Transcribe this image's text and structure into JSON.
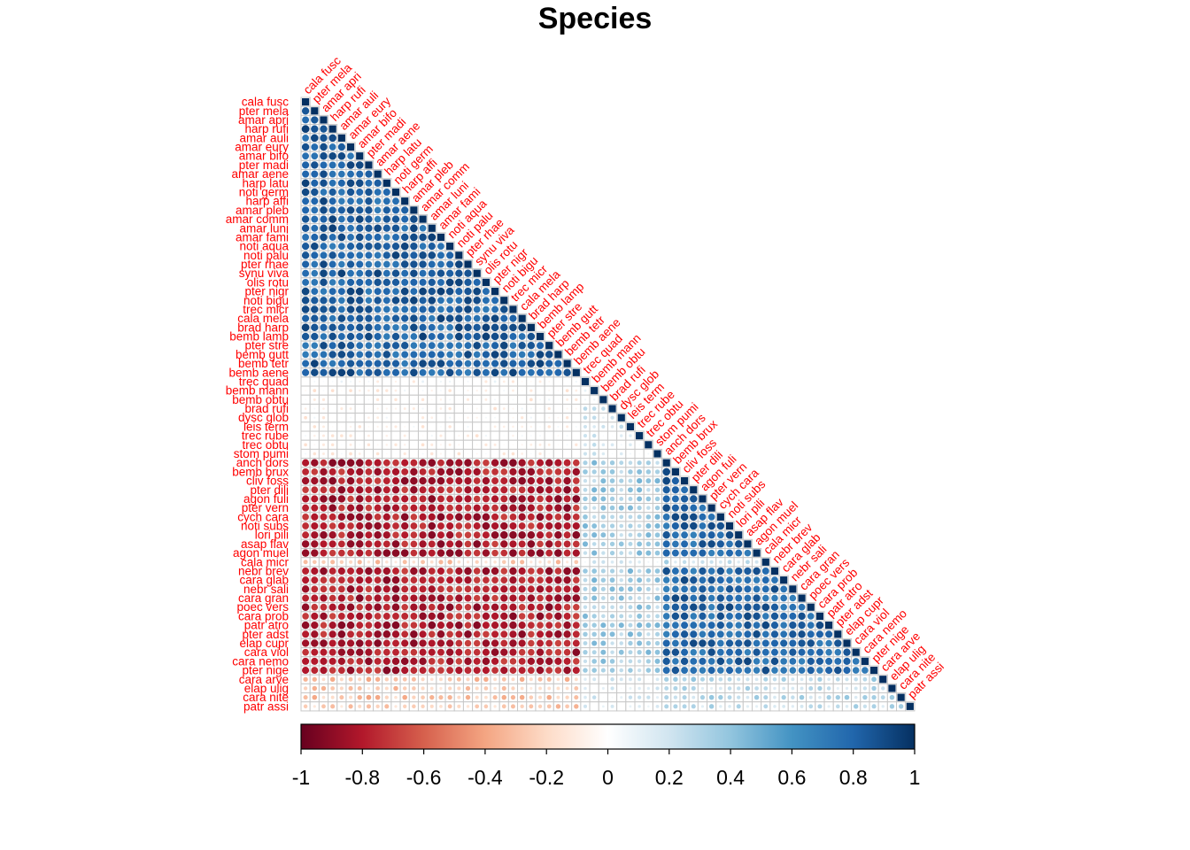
{
  "chart_data": {
    "type": "heatmap",
    "title": "Species",
    "layout": "lower-triangle",
    "method": "circle",
    "labels": [
      "cala fusc",
      "pter mela",
      "amar apri",
      "harp rufi",
      "amar auli",
      "amar eury",
      "amar bifo",
      "pter madi",
      "amar aene",
      "harp latu",
      "noti germ",
      "harp affi",
      "amar pleb",
      "amar comm",
      "amar luni",
      "amar fami",
      "noti aqua",
      "noti palu",
      "pter rhae",
      "synu viva",
      "olis rotu",
      "pter nigr",
      "noti bigu",
      "trec micr",
      "cala mela",
      "brad harp",
      "bemb lamp",
      "pter stre",
      "bemb gutt",
      "bemb tetr",
      "bemb aene",
      "trec quad",
      "bemb mann",
      "bemb obtu",
      "brad rufi",
      "dysc glob",
      "leis term",
      "trec rube",
      "trec obtu",
      "stom pumi",
      "anch dors",
      "bemb brux",
      "cliv foss",
      "pter dili",
      "agon fuli",
      "pter vern",
      "cych cara",
      "noti subs",
      "lori pili",
      "asap flav",
      "agon muel",
      "cala micr",
      "nebr brev",
      "cara glab",
      "nebr sali",
      "cara gran",
      "poec vers",
      "cara prob",
      "patr atro",
      "pter adst",
      "elap cupr",
      "cara viol",
      "cara nemo",
      "pter nige",
      "cara arve",
      "elap ulig",
      "cara nite",
      "patr assi"
    ],
    "group_index": [
      0,
      0,
      0,
      0,
      0,
      0,
      0,
      0,
      0,
      0,
      0,
      0,
      0,
      0,
      0,
      0,
      0,
      0,
      0,
      0,
      0,
      0,
      0,
      0,
      0,
      0,
      0,
      0,
      0,
      0,
      0,
      1,
      1,
      1,
      1,
      1,
      1,
      1,
      1,
      1,
      2,
      2,
      2,
      2,
      2,
      2,
      2,
      2,
      2,
      2,
      2,
      2,
      2,
      2,
      2,
      2,
      2,
      2,
      2,
      2,
      2,
      2,
      2,
      2,
      2,
      2,
      2,
      2
    ],
    "group_correlation": [
      [
        0.82,
        -0.05,
        -0.8
      ],
      [
        -0.05,
        0.15,
        0.35
      ],
      [
        -0.8,
        0.35,
        0.8
      ]
    ],
    "special_rows": {
      "trec quad": 0.2,
      "cala micr": 0.3,
      "cara arve": 0.35,
      "elap ulig": 0.3,
      "cara nite": 0.35,
      "patr assi": 0.3
    },
    "colorbar": {
      "ticks": [
        "-1",
        "-0.8",
        "-0.6",
        "-0.4",
        "-0.2",
        "0",
        "0.2",
        "0.4",
        "0.6",
        "0.8",
        "1"
      ],
      "range": [
        -1,
        1
      ]
    },
    "colors": {
      "neg": "#67001f",
      "mid": "#ffffff",
      "pos": "#053061",
      "labels": "#ff0000",
      "grid": "#c8c8c8"
    }
  }
}
